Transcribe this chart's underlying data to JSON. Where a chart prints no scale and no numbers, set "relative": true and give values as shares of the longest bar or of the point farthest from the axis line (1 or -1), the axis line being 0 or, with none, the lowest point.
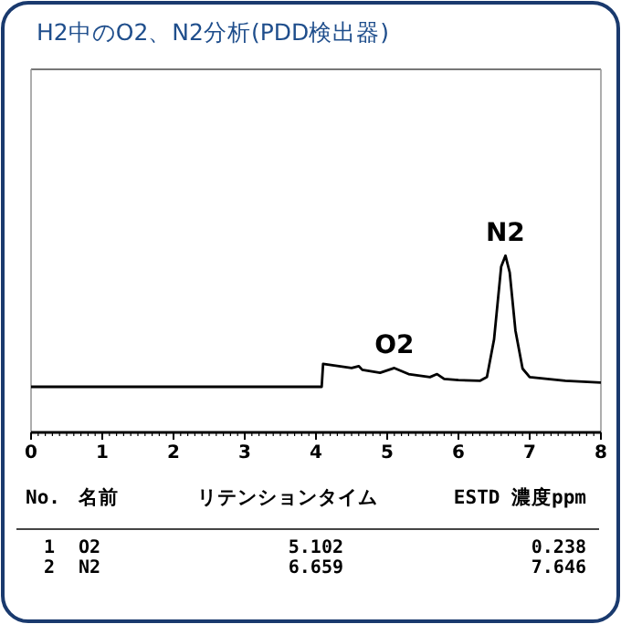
{
  "chart_data": {
    "type": "line",
    "title": "H2中のO2、N2分析(PDD検出器)",
    "relative": true,
    "xlim": [
      0,
      8
    ],
    "xticks": [
      0,
      1,
      2,
      3,
      4,
      5,
      6,
      7,
      8
    ],
    "series": [
      {
        "color": "#000000",
        "x": [
          0,
          4.0,
          4.08,
          4.1,
          4.5,
          4.6,
          4.65,
          4.9,
          5.1,
          5.3,
          5.6,
          5.7,
          5.8,
          6.0,
          6.3,
          6.4,
          6.5,
          6.6,
          6.66,
          6.72,
          6.8,
          6.9,
          7.0,
          7.5,
          8.0
        ],
        "values": [
          0.258,
          0.258,
          0.258,
          0.388,
          0.364,
          0.375,
          0.354,
          0.337,
          0.364,
          0.33,
          0.313,
          0.33,
          0.302,
          0.296,
          0.292,
          0.313,
          0.526,
          0.938,
          1,
          0.904,
          0.577,
          0.361,
          0.313,
          0.292,
          0.282
        ]
      }
    ],
    "annotations": [
      {
        "text": "O2",
        "x": 5.102,
        "y": 0.364
      },
      {
        "text": "N2",
        "x": 6.659,
        "y": 1
      },
      "No.",
      "名前",
      "リテンションタイム",
      "ESTD 濃度ppm",
      "1",
      "O2",
      "5.102",
      "0.238",
      "2",
      "N2",
      "6.659",
      "7.646"
    ]
  }
}
